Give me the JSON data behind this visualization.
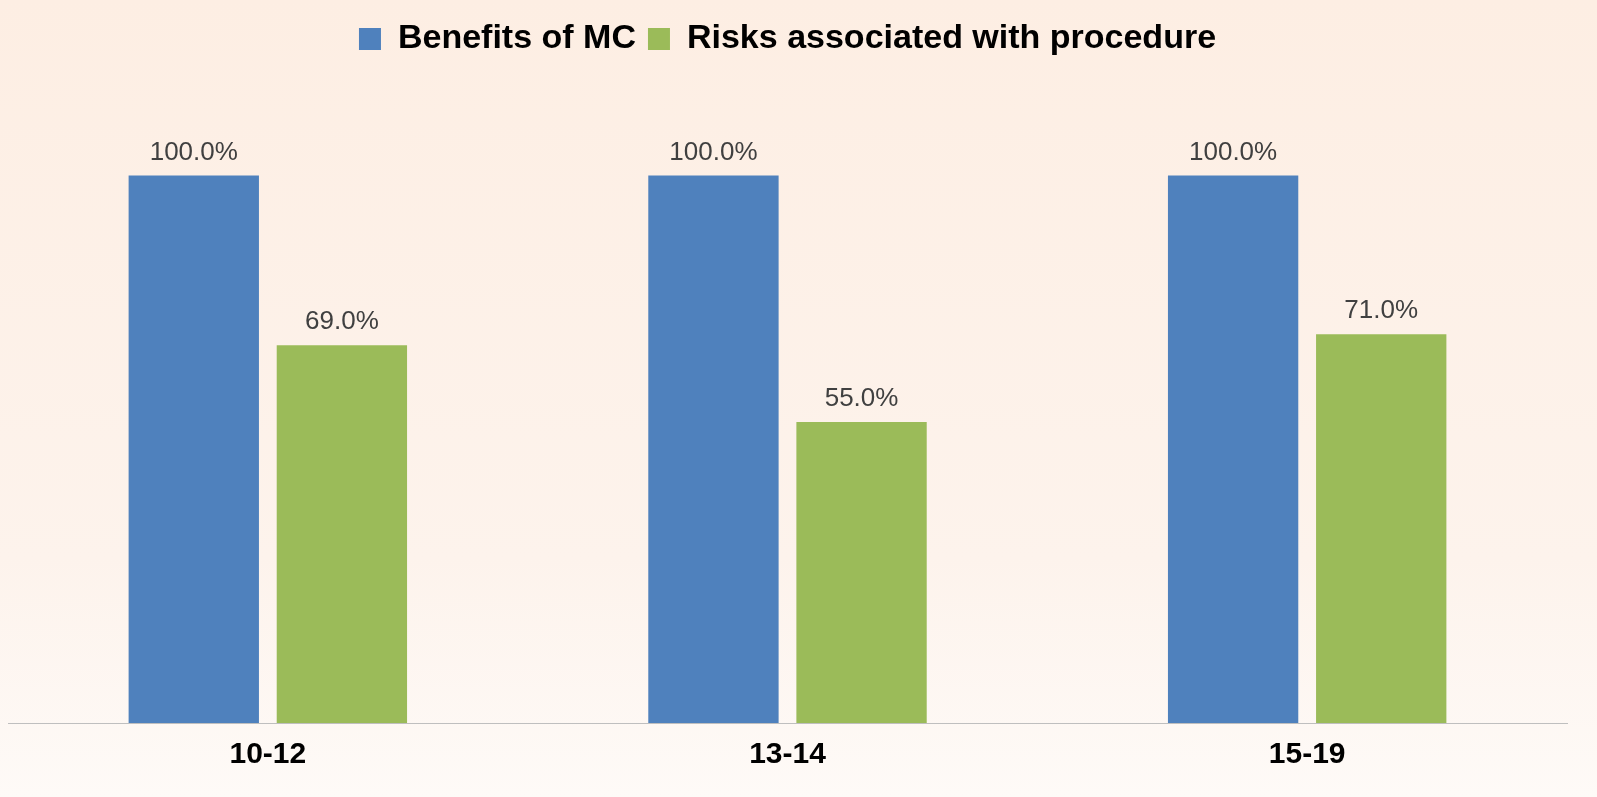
{
  "chart_data": {
    "type": "bar",
    "categories": [
      "10-12",
      "13-14",
      "15-19"
    ],
    "series": [
      {
        "name": "Benefits of MC",
        "color": "#4f81bd",
        "values": [
          100,
          100,
          100
        ],
        "value_labels": [
          "100.0%",
          "100.0%",
          "100.0%"
        ]
      },
      {
        "name": "Risks associated with procedure",
        "color": "#9bbb59",
        "values": [
          69,
          55,
          71
        ],
        "value_labels": [
          "69.0%",
          "55.0%",
          "71.0%"
        ]
      }
    ],
    "grid": false,
    "legend": "top"
  }
}
